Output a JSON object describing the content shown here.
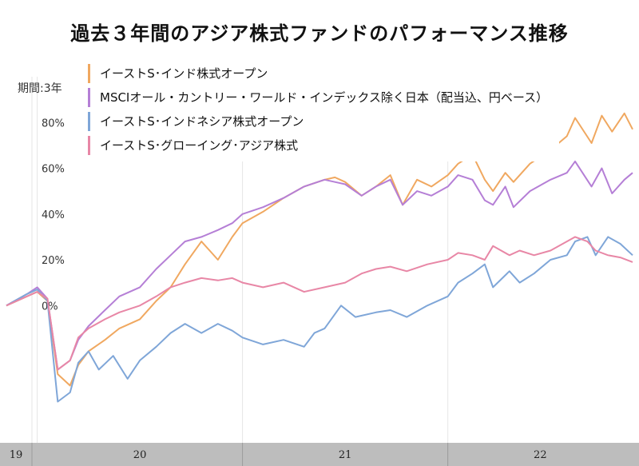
{
  "title": "過去３年間のアジア株式ファンドのパフォーマンス推移",
  "period_label": "期間:3年",
  "chart_data": {
    "type": "line",
    "title": "過去３年間のアジア株式ファンドのパフォーマンス推移",
    "ylabel": "",
    "xlabel": "",
    "y_ticks": [
      "80%",
      "60%",
      "40%",
      "20%",
      "0%"
    ],
    "y_tick_values": [
      80,
      60,
      40,
      20,
      0
    ],
    "x_ticks": [
      "19",
      "20",
      "21",
      "22"
    ],
    "x_tick_values": [
      2019.92,
      2020.5,
      2021.5,
      2022.45
    ],
    "ylim": [
      -60,
      100
    ],
    "xlim": [
      2019.85,
      2022.9
    ],
    "grid": "vertical",
    "legend_position": "top-left",
    "series": [
      {
        "name": "イーストS･インド株式オープン",
        "color": "#f0a860",
        "x": [
          2019.85,
          2019.95,
          2020.0,
          2020.05,
          2020.1,
          2020.16,
          2020.2,
          2020.25,
          2020.33,
          2020.4,
          2020.5,
          2020.58,
          2020.65,
          2020.72,
          2020.8,
          2020.84,
          2020.88,
          2020.95,
          2021.0,
          2021.1,
          2021.2,
          2021.3,
          2021.4,
          2021.45,
          2021.5,
          2021.58,
          2021.65,
          2021.72,
          2021.78,
          2021.85,
          2021.92,
          2022.0,
          2022.05,
          2022.12,
          2022.18,
          2022.22,
          2022.28,
          2022.32,
          2022.4,
          2022.5,
          2022.58,
          2022.62,
          2022.7,
          2022.75,
          2022.8,
          2022.86,
          2022.9
        ],
        "y": [
          0,
          4,
          6,
          2,
          -30,
          -35,
          -26,
          -20,
          -15,
          -10,
          -6,
          2,
          8,
          18,
          28,
          24,
          20,
          30,
          36,
          41,
          47,
          52,
          55,
          56,
          54,
          48,
          52,
          57,
          44,
          55,
          52,
          57,
          62,
          66,
          55,
          50,
          58,
          54,
          62,
          68,
          74,
          82,
          71,
          83,
          76,
          84,
          77
        ]
      },
      {
        "name": "MSCIオール・カントリー・ワールド・インデックス除く日本（配当込、円ベース）",
        "color": "#b57fd6",
        "x": [
          2019.85,
          2019.95,
          2020.0,
          2020.05,
          2020.1,
          2020.16,
          2020.2,
          2020.25,
          2020.33,
          2020.4,
          2020.5,
          2020.58,
          2020.65,
          2020.72,
          2020.8,
          2020.88,
          2020.95,
          2021.0,
          2021.1,
          2021.2,
          2021.3,
          2021.4,
          2021.45,
          2021.5,
          2021.58,
          2021.65,
          2021.72,
          2021.78,
          2021.85,
          2021.92,
          2022.0,
          2022.05,
          2022.12,
          2022.18,
          2022.22,
          2022.28,
          2022.32,
          2022.4,
          2022.5,
          2022.58,
          2022.62,
          2022.7,
          2022.75,
          2022.8,
          2022.86,
          2022.9
        ],
        "y": [
          0,
          5,
          8,
          3,
          -28,
          -24,
          -15,
          -9,
          -2,
          4,
          8,
          16,
          22,
          28,
          30,
          33,
          36,
          40,
          43,
          47,
          52,
          55,
          54,
          53,
          48,
          52,
          55,
          44,
          50,
          48,
          52,
          57,
          55,
          46,
          44,
          52,
          43,
          50,
          55,
          58,
          63,
          52,
          60,
          49,
          55,
          58
        ]
      },
      {
        "name": "イーストS･インドネシア株式オープン",
        "color": "#7fa6d8",
        "x": [
          2019.85,
          2019.95,
          2020.0,
          2020.05,
          2020.1,
          2020.16,
          2020.2,
          2020.25,
          2020.3,
          2020.37,
          2020.44,
          2020.5,
          2020.58,
          2020.65,
          2020.72,
          2020.8,
          2020.88,
          2020.95,
          2021.0,
          2021.1,
          2021.2,
          2021.3,
          2021.35,
          2021.4,
          2021.48,
          2021.55,
          2021.65,
          2021.72,
          2021.8,
          2021.9,
          2022.0,
          2022.05,
          2022.12,
          2022.18,
          2022.22,
          2022.3,
          2022.35,
          2022.42,
          2022.5,
          2022.58,
          2022.62,
          2022.68,
          2022.72,
          2022.78,
          2022.84,
          2022.9
        ],
        "y": [
          0,
          5,
          7,
          2,
          -42,
          -38,
          -25,
          -20,
          -28,
          -22,
          -32,
          -24,
          -18,
          -12,
          -8,
          -12,
          -8,
          -11,
          -14,
          -17,
          -15,
          -18,
          -12,
          -10,
          0,
          -5,
          -3,
          -2,
          -5,
          0,
          4,
          10,
          14,
          18,
          8,
          15,
          10,
          14,
          20,
          22,
          28,
          30,
          22,
          30,
          27,
          22
        ]
      },
      {
        "name": "イーストS･グローイング･アジア株式",
        "color": "#e887a6",
        "x": [
          2019.85,
          2019.95,
          2020.0,
          2020.05,
          2020.1,
          2020.16,
          2020.2,
          2020.25,
          2020.33,
          2020.4,
          2020.5,
          2020.58,
          2020.65,
          2020.72,
          2020.8,
          2020.88,
          2020.95,
          2021.0,
          2021.1,
          2021.2,
          2021.3,
          2021.4,
          2021.5,
          2021.58,
          2021.65,
          2021.72,
          2021.8,
          2021.9,
          2022.0,
          2022.05,
          2022.12,
          2022.18,
          2022.22,
          2022.3,
          2022.35,
          2022.42,
          2022.5,
          2022.58,
          2022.62,
          2022.68,
          2022.72,
          2022.78,
          2022.84,
          2022.9
        ],
        "y": [
          0,
          4,
          6,
          3,
          -28,
          -24,
          -14,
          -10,
          -6,
          -3,
          0,
          4,
          8,
          10,
          12,
          11,
          12,
          10,
          8,
          10,
          6,
          8,
          10,
          14,
          16,
          17,
          15,
          18,
          20,
          23,
          22,
          20,
          26,
          22,
          24,
          22,
          24,
          28,
          30,
          28,
          24,
          22,
          21,
          19
        ]
      }
    ]
  }
}
